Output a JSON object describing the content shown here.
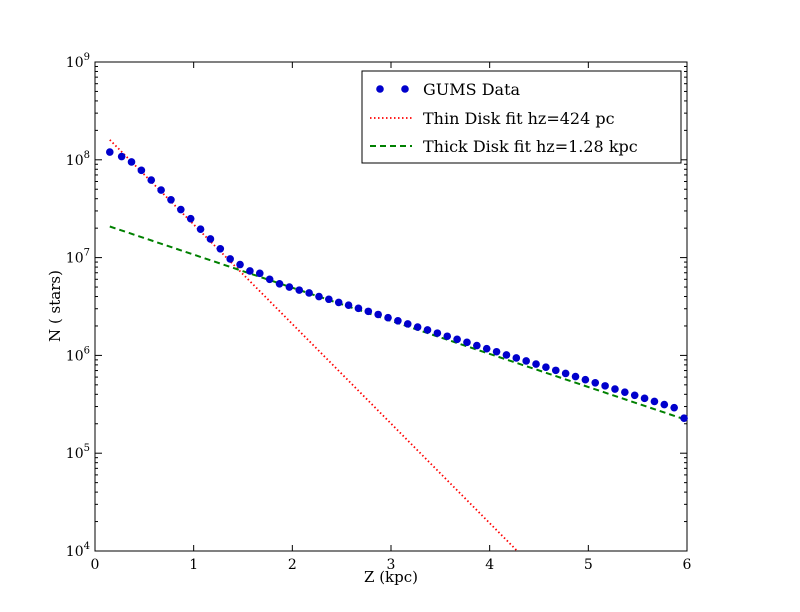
{
  "chart_data": {
    "type": "scatter",
    "xlabel": "Z (kpc)",
    "ylabel": "N ( stars)",
    "xlim": [
      0,
      6
    ],
    "ylim": [
      10000,
      1000000000
    ],
    "yscale": "log",
    "grid": false,
    "legend_position": "top-right",
    "x_ticks": [
      "0",
      "1",
      "2",
      "3",
      "4",
      "5",
      "6"
    ],
    "y_ticks": [
      {
        "base": "10",
        "exp": "4"
      },
      {
        "base": "10",
        "exp": "5"
      },
      {
        "base": "10",
        "exp": "6"
      },
      {
        "base": "10",
        "exp": "7"
      },
      {
        "base": "10",
        "exp": "8"
      },
      {
        "base": "10",
        "exp": "9"
      }
    ],
    "series": [
      {
        "name": "GUMS Data",
        "style": "points",
        "color": "#0000cc",
        "x": [
          0.15,
          0.27,
          0.37,
          0.47,
          0.57,
          0.67,
          0.77,
          0.87,
          0.97,
          1.07,
          1.17,
          1.27,
          1.37,
          1.47,
          1.57,
          1.67,
          1.77,
          1.87,
          1.97,
          2.07,
          2.17,
          2.27,
          2.37,
          2.47,
          2.57,
          2.67,
          2.77,
          2.87,
          2.97,
          3.07,
          3.17,
          3.27,
          3.37,
          3.47,
          3.57,
          3.67,
          3.77,
          3.87,
          3.97,
          4.07,
          4.17,
          4.27,
          4.37,
          4.47,
          4.57,
          4.67,
          4.77,
          4.87,
          4.97,
          5.07,
          5.17,
          5.27,
          5.37,
          5.47,
          5.57,
          5.67,
          5.77,
          5.87,
          5.97
        ],
        "y": [
          120000000,
          108000000,
          95000000,
          78000000,
          62000000,
          49000000,
          39000000,
          31000000,
          25000000,
          19500000,
          15500000,
          12300000,
          9700000,
          8500000,
          7300000,
          6900000,
          6000000,
          5400000,
          5000000,
          4650000,
          4350000,
          4000000,
          3750000,
          3480000,
          3260000,
          3030000,
          2820000,
          2620000,
          2430000,
          2260000,
          2100000,
          1950000,
          1820000,
          1690000,
          1570000,
          1460000,
          1360000,
          1260000,
          1170000,
          1090000,
          1010000,
          942000,
          877000,
          815000,
          757000,
          703000,
          654000,
          608000,
          565000,
          525000,
          488000,
          453000,
          421000,
          391000,
          364000,
          338000,
          314000,
          292000,
          228000
        ]
      },
      {
        "name": "Thin Disk fit hz=424 pc",
        "style": "dotted",
        "color": "#ff0000",
        "x": [
          0.15,
          4.28
        ],
        "y": [
          160000000,
          10000
        ]
      },
      {
        "name": "Thick Disk fit hz=1.28 kpc",
        "style": "dashed",
        "color": "#008000",
        "x": [
          0.15,
          6.0
        ],
        "y": [
          20800000,
          218000
        ]
      }
    ]
  }
}
